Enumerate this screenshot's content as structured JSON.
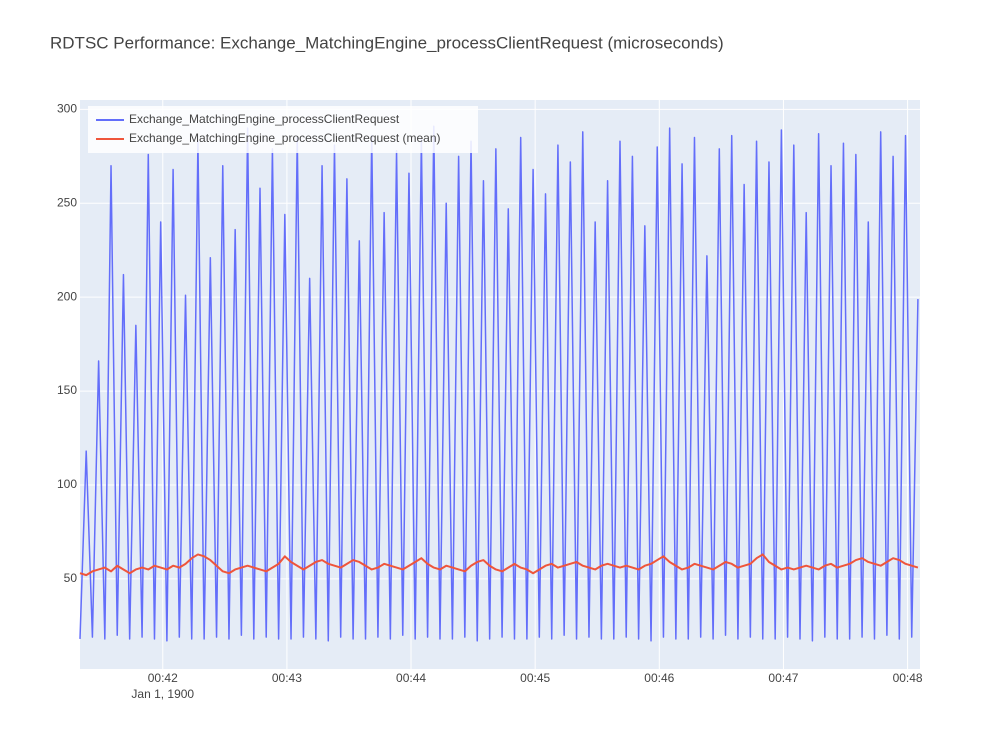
{
  "chart_data": {
    "type": "line",
    "title": "RDTSC Performance: Exchange_MatchingEngine_processClientRequest (microseconds)",
    "x_date_label": "Jan 1, 1900",
    "grid": true,
    "legend": "top-left",
    "xlim": [
      "1900-01-01 00:41:20",
      "1900-01-01 00:48:06"
    ],
    "xticks": [
      {
        "value": "1900-01-01 00:42:00",
        "label": "00:42"
      },
      {
        "value": "1900-01-01 00:43:00",
        "label": "00:43"
      },
      {
        "value": "1900-01-01 00:44:00",
        "label": "00:44"
      },
      {
        "value": "1900-01-01 00:45:00",
        "label": "00:45"
      },
      {
        "value": "1900-01-01 00:46:00",
        "label": "00:46"
      },
      {
        "value": "1900-01-01 00:47:00",
        "label": "00:47"
      },
      {
        "value": "1900-01-01 00:48:00",
        "label": "00:48"
      }
    ],
    "ylim": [
      2,
      305
    ],
    "yticks": [
      50,
      100,
      150,
      200,
      250,
      300
    ],
    "x": [
      "1900-01-01 00:41:20",
      "1900-01-01 00:41:23",
      "1900-01-01 00:41:26",
      "1900-01-01 00:41:29",
      "1900-01-01 00:41:32",
      "1900-01-01 00:41:35",
      "1900-01-01 00:41:38",
      "1900-01-01 00:41:41",
      "1900-01-01 00:41:44",
      "1900-01-01 00:41:47",
      "1900-01-01 00:41:50",
      "1900-01-01 00:41:53",
      "1900-01-01 00:41:56",
      "1900-01-01 00:41:59",
      "1900-01-01 00:42:02",
      "1900-01-01 00:42:05",
      "1900-01-01 00:42:08",
      "1900-01-01 00:42:11",
      "1900-01-01 00:42:14",
      "1900-01-01 00:42:17",
      "1900-01-01 00:42:20",
      "1900-01-01 00:42:23",
      "1900-01-01 00:42:26",
      "1900-01-01 00:42:29",
      "1900-01-01 00:42:32",
      "1900-01-01 00:42:35",
      "1900-01-01 00:42:38",
      "1900-01-01 00:42:41",
      "1900-01-01 00:42:44",
      "1900-01-01 00:42:47",
      "1900-01-01 00:42:50",
      "1900-01-01 00:42:53",
      "1900-01-01 00:42:56",
      "1900-01-01 00:42:59",
      "1900-01-01 00:43:02",
      "1900-01-01 00:43:05",
      "1900-01-01 00:43:08",
      "1900-01-01 00:43:11",
      "1900-01-01 00:43:14",
      "1900-01-01 00:43:17",
      "1900-01-01 00:43:20",
      "1900-01-01 00:43:23",
      "1900-01-01 00:43:26",
      "1900-01-01 00:43:29",
      "1900-01-01 00:43:32",
      "1900-01-01 00:43:35",
      "1900-01-01 00:43:38",
      "1900-01-01 00:43:41",
      "1900-01-01 00:43:44",
      "1900-01-01 00:43:47",
      "1900-01-01 00:43:50",
      "1900-01-01 00:43:53",
      "1900-01-01 00:43:56",
      "1900-01-01 00:43:59",
      "1900-01-01 00:44:02",
      "1900-01-01 00:44:05",
      "1900-01-01 00:44:08",
      "1900-01-01 00:44:11",
      "1900-01-01 00:44:14",
      "1900-01-01 00:44:17",
      "1900-01-01 00:44:20",
      "1900-01-01 00:44:23",
      "1900-01-01 00:44:26",
      "1900-01-01 00:44:29",
      "1900-01-01 00:44:32",
      "1900-01-01 00:44:35",
      "1900-01-01 00:44:38",
      "1900-01-01 00:44:41",
      "1900-01-01 00:44:44",
      "1900-01-01 00:44:47",
      "1900-01-01 00:44:50",
      "1900-01-01 00:44:53",
      "1900-01-01 00:44:56",
      "1900-01-01 00:44:59",
      "1900-01-01 00:45:02",
      "1900-01-01 00:45:05",
      "1900-01-01 00:45:08",
      "1900-01-01 00:45:11",
      "1900-01-01 00:45:14",
      "1900-01-01 00:45:17",
      "1900-01-01 00:45:20",
      "1900-01-01 00:45:23",
      "1900-01-01 00:45:26",
      "1900-01-01 00:45:29",
      "1900-01-01 00:45:32",
      "1900-01-01 00:45:35",
      "1900-01-01 00:45:38",
      "1900-01-01 00:45:41",
      "1900-01-01 00:45:44",
      "1900-01-01 00:45:47",
      "1900-01-01 00:45:50",
      "1900-01-01 00:45:53",
      "1900-01-01 00:45:56",
      "1900-01-01 00:45:59",
      "1900-01-01 00:46:02",
      "1900-01-01 00:46:05",
      "1900-01-01 00:46:08",
      "1900-01-01 00:46:11",
      "1900-01-01 00:46:14",
      "1900-01-01 00:46:17",
      "1900-01-01 00:46:20",
      "1900-01-01 00:46:23",
      "1900-01-01 00:46:26",
      "1900-01-01 00:46:29",
      "1900-01-01 00:46:32",
      "1900-01-01 00:46:35",
      "1900-01-01 00:46:38",
      "1900-01-01 00:46:41",
      "1900-01-01 00:46:44",
      "1900-01-01 00:46:47",
      "1900-01-01 00:46:50",
      "1900-01-01 00:46:53",
      "1900-01-01 00:46:56",
      "1900-01-01 00:46:59",
      "1900-01-01 00:47:02",
      "1900-01-01 00:47:05",
      "1900-01-01 00:47:08",
      "1900-01-01 00:47:11",
      "1900-01-01 00:47:14",
      "1900-01-01 00:47:17",
      "1900-01-01 00:47:20",
      "1900-01-01 00:47:23",
      "1900-01-01 00:47:26",
      "1900-01-01 00:47:29",
      "1900-01-01 00:47:32",
      "1900-01-01 00:47:35",
      "1900-01-01 00:47:38",
      "1900-01-01 00:47:41",
      "1900-01-01 00:47:44",
      "1900-01-01 00:47:47",
      "1900-01-01 00:47:50",
      "1900-01-01 00:47:53",
      "1900-01-01 00:47:56",
      "1900-01-01 00:47:59",
      "1900-01-01 00:48:02",
      "1900-01-01 00:48:05"
    ],
    "series": [
      {
        "name": "Exchange_MatchingEngine_processClientRequest",
        "color": "#636efa",
        "values": [
          18,
          118,
          19,
          166,
          18,
          270,
          20,
          212,
          18,
          185,
          19,
          276,
          18,
          240,
          17,
          268,
          19,
          201,
          18,
          283,
          18,
          221,
          19,
          270,
          18,
          236,
          20,
          290,
          18,
          258,
          19,
          279,
          18,
          244,
          18,
          285,
          19,
          210,
          18,
          270,
          17,
          281,
          19,
          263,
          18,
          230,
          18,
          286,
          19,
          245,
          18,
          278,
          20,
          266,
          18,
          284,
          19,
          291,
          18,
          250,
          18,
          275,
          19,
          283,
          17,
          262,
          18,
          279,
          19,
          247,
          18,
          285,
          18,
          268,
          19,
          255,
          18,
          281,
          20,
          272,
          18,
          288,
          19,
          240,
          18,
          262,
          18,
          283,
          19,
          275,
          18,
          238,
          17,
          280,
          19,
          290,
          18,
          271,
          18,
          285,
          19,
          222,
          18,
          279,
          20,
          286,
          18,
          260,
          19,
          283,
          18,
          272,
          18,
          289,
          19,
          281,
          18,
          245,
          17,
          287,
          19,
          270,
          18,
          282,
          18,
          276,
          19,
          240,
          18,
          288,
          20,
          275,
          18,
          286,
          19,
          199
        ]
      },
      {
        "name": "Exchange_MatchingEngine_processClientRequest (mean)",
        "color": "#ef553b",
        "values": [
          53,
          52,
          54,
          55,
          56,
          54,
          57,
          55,
          53,
          55,
          56,
          55,
          57,
          56,
          55,
          57,
          56,
          58,
          61,
          63,
          62,
          60,
          57,
          54,
          53,
          55,
          56,
          57,
          56,
          55,
          54,
          56,
          58,
          62,
          59,
          57,
          55,
          57,
          59,
          60,
          58,
          57,
          56,
          58,
          60,
          59,
          57,
          55,
          56,
          58,
          57,
          56,
          55,
          57,
          59,
          61,
          58,
          56,
          55,
          57,
          56,
          55,
          54,
          57,
          59,
          60,
          57,
          55,
          54,
          56,
          58,
          56,
          55,
          53,
          55,
          57,
          58,
          56,
          57,
          58,
          59,
          57,
          56,
          55,
          57,
          58,
          57,
          56,
          57,
          56,
          55,
          57,
          58,
          60,
          62,
          59,
          57,
          55,
          56,
          58,
          57,
          56,
          55,
          57,
          59,
          58,
          56,
          57,
          58,
          61,
          63,
          59,
          57,
          55,
          56,
          55,
          56,
          57,
          56,
          55,
          57,
          58,
          56,
          57,
          58,
          60,
          61,
          59,
          58,
          57,
          59,
          61,
          60,
          58,
          57,
          56
        ]
      }
    ]
  }
}
